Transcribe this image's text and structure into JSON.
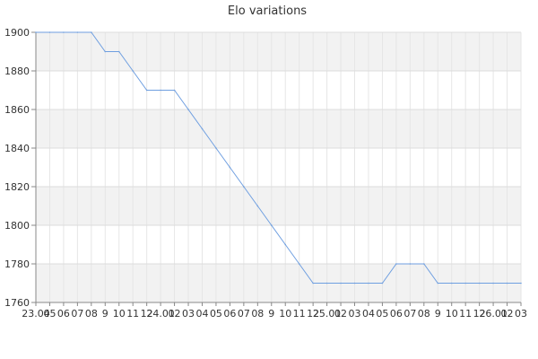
{
  "chart_data": {
    "type": "line",
    "title": "Elo variations",
    "xlabel": "",
    "ylabel": "",
    "ylim": [
      1760,
      1900
    ],
    "yticks": [
      1760,
      1780,
      1800,
      1820,
      1840,
      1860,
      1880,
      1900
    ],
    "grid": true,
    "x_tick_labels": [
      "23.04",
      "05",
      "06",
      "07",
      "08",
      "9",
      "10",
      "11",
      "12",
      "24.01",
      "02",
      "03",
      "04",
      "05",
      "06",
      "07",
      "08",
      "9",
      "10",
      "11",
      "12",
      "25.01",
      "02",
      "03",
      "04",
      "05",
      "06",
      "07",
      "08",
      "9",
      "10",
      "11",
      "12",
      "26.01",
      "02",
      "03"
    ],
    "series": [
      {
        "color": "#6f9fe0",
        "x": [
          0,
          1,
          2,
          3,
          4,
          5,
          6,
          7,
          8,
          9,
          10,
          11,
          12,
          13,
          14,
          15,
          16,
          17,
          18,
          19,
          20,
          21,
          22,
          23,
          24,
          25,
          26,
          27,
          28,
          29,
          30,
          31,
          32,
          33,
          34,
          35
        ],
        "values": [
          1900,
          1900,
          1900,
          1900,
          1900,
          1890,
          1890,
          1880,
          1870,
          1870,
          1870,
          1860,
          1850,
          1840,
          1830,
          1820,
          1810,
          1800,
          1790,
          1780,
          1770,
          1770,
          1770,
          1770,
          1770,
          1770,
          1780,
          1780,
          1780,
          1770,
          1770,
          1770,
          1770,
          1770,
          1770,
          1770
        ]
      }
    ]
  }
}
